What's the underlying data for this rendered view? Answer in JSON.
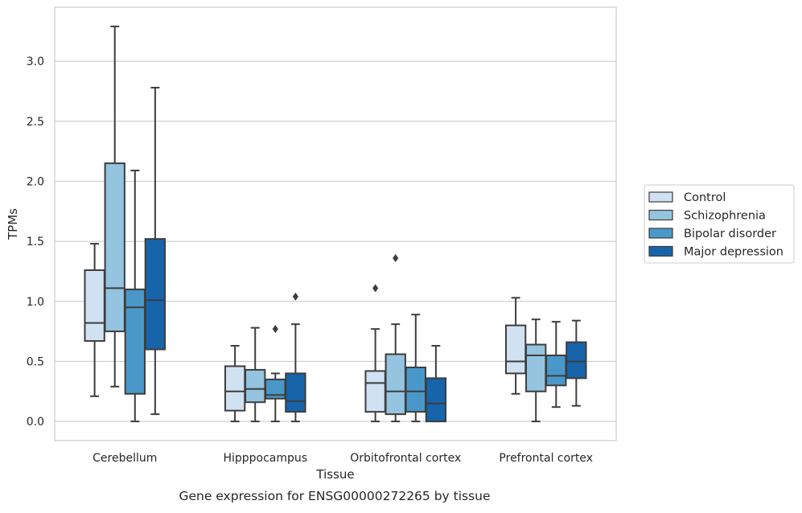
{
  "caption": "Gene expression for ENSG00000272265 by tissue",
  "chart_data": {
    "type": "box",
    "title": "",
    "xlabel": "Tissue",
    "ylabel": "TPMs",
    "ylim": [
      -0.16,
      3.45
    ],
    "yticks": [
      0.0,
      0.5,
      1.0,
      1.5,
      2.0,
      2.5,
      3.0
    ],
    "ytick_labels": [
      "0.0",
      "0.5",
      "1.0",
      "1.5",
      "2.0",
      "2.5",
      "3.0"
    ],
    "grid": "horizontal",
    "legend_position": "right",
    "categories": [
      "Cerebellum",
      "Hipppocampus",
      "Orbitofrontal cortex",
      "Prefrontal cortex"
    ],
    "series": [
      {
        "name": "Control",
        "color": "#d0e1f2",
        "boxes": [
          {
            "whislo": 0.21,
            "q1": 0.67,
            "med": 0.82,
            "q3": 1.26,
            "whishi": 1.48,
            "fliers": []
          },
          {
            "whislo": 0.0,
            "q1": 0.09,
            "med": 0.25,
            "q3": 0.46,
            "whishi": 0.63,
            "fliers": []
          },
          {
            "whislo": 0.0,
            "q1": 0.08,
            "med": 0.32,
            "q3": 0.42,
            "whishi": 0.77,
            "fliers": [
              1.11
            ]
          },
          {
            "whislo": 0.23,
            "q1": 0.4,
            "med": 0.5,
            "q3": 0.8,
            "whishi": 1.03,
            "fliers": []
          }
        ]
      },
      {
        "name": "Schizophrenia",
        "color": "#94c4df",
        "boxes": [
          {
            "whislo": 0.29,
            "q1": 0.75,
            "med": 1.11,
            "q3": 2.15,
            "whishi": 3.29,
            "fliers": []
          },
          {
            "whislo": 0.0,
            "q1": 0.16,
            "med": 0.27,
            "q3": 0.43,
            "whishi": 0.78,
            "fliers": []
          },
          {
            "whislo": 0.0,
            "q1": 0.06,
            "med": 0.25,
            "q3": 0.56,
            "whishi": 0.81,
            "fliers": [
              1.36
            ]
          },
          {
            "whislo": 0.0,
            "q1": 0.25,
            "med": 0.55,
            "q3": 0.64,
            "whishi": 0.85,
            "fliers": []
          }
        ]
      },
      {
        "name": "Bipolar disorder",
        "color": "#4a98c9",
        "boxes": [
          {
            "whislo": 0.0,
            "q1": 0.23,
            "med": 0.95,
            "q3": 1.1,
            "whishi": 2.09,
            "fliers": []
          },
          {
            "whislo": 0.0,
            "q1": 0.19,
            "med": 0.22,
            "q3": 0.35,
            "whishi": 0.4,
            "fliers": [
              0.77
            ]
          },
          {
            "whislo": 0.0,
            "q1": 0.08,
            "med": 0.25,
            "q3": 0.45,
            "whishi": 0.89,
            "fliers": []
          },
          {
            "whislo": 0.12,
            "q1": 0.3,
            "med": 0.38,
            "q3": 0.55,
            "whishi": 0.83,
            "fliers": []
          }
        ]
      },
      {
        "name": "Major depression",
        "color": "#1764ab",
        "boxes": [
          {
            "whislo": 0.06,
            "q1": 0.6,
            "med": 1.01,
            "q3": 1.52,
            "whishi": 2.78,
            "fliers": []
          },
          {
            "whislo": 0.0,
            "q1": 0.08,
            "med": 0.17,
            "q3": 0.4,
            "whishi": 0.81,
            "fliers": [
              1.04
            ]
          },
          {
            "whislo": 0.0,
            "q1": 0.0,
            "med": 0.15,
            "q3": 0.36,
            "whishi": 0.63,
            "fliers": []
          },
          {
            "whislo": 0.13,
            "q1": 0.36,
            "med": 0.5,
            "q3": 0.66,
            "whishi": 0.84,
            "fliers": []
          }
        ]
      }
    ]
  }
}
